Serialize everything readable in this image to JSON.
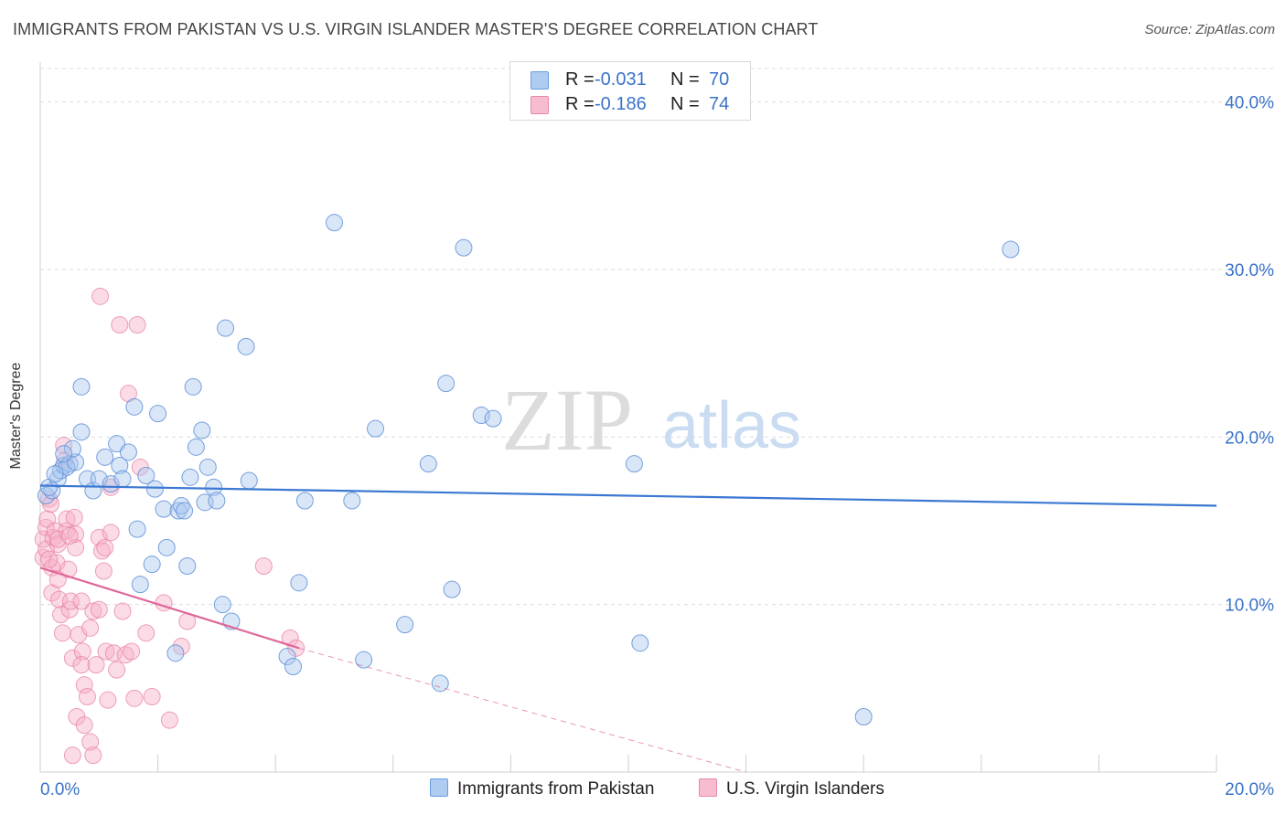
{
  "title": "IMMIGRANTS FROM PAKISTAN VS U.S. VIRGIN ISLANDER MASTER'S DEGREE CORRELATION CHART",
  "source": "Source: ZipAtlas.com",
  "watermark": {
    "zip": "ZIP",
    "atlas": "atlas"
  },
  "legend": {
    "r_label": "R =",
    "n_label": "N =",
    "rows": [
      {
        "name": "Immigrants from Pakistan",
        "r": "-0.031",
        "n": "70",
        "fill": "#aecbf2",
        "stroke": "#6b9de0"
      },
      {
        "name": "U.S. Virgin Islanders",
        "r": "-0.186",
        "n": "74",
        "fill": "#f7bcd0",
        "stroke": "#e887a8"
      }
    ]
  },
  "chart_data": {
    "type": "scatter",
    "title": "IMMIGRANTS FROM PAKISTAN VS U.S. VIRGIN ISLANDER MASTER'S DEGREE CORRELATION CHART",
    "xlabel": "",
    "ylabel": "Master's Degree",
    "xlim": [
      0,
      20
    ],
    "ylim": [
      0,
      42
    ],
    "x_tick_labels": [
      "0.0%",
      "20.0%"
    ],
    "y_ticks": [
      10,
      20,
      30,
      40
    ],
    "y_tick_labels": [
      "10.0%",
      "20.0%",
      "30.0%",
      "40.0%"
    ],
    "grid": true,
    "series": [
      {
        "name": "Immigrants from Pakistan",
        "color": "#3a78d2",
        "points": [
          [
            0.1,
            16.5
          ],
          [
            0.2,
            16.8
          ],
          [
            0.15,
            17.0
          ],
          [
            0.3,
            17.5
          ],
          [
            0.35,
            18.0
          ],
          [
            0.4,
            18.3
          ],
          [
            0.5,
            18.4
          ],
          [
            0.45,
            18.2
          ],
          [
            0.6,
            18.5
          ],
          [
            0.55,
            19.3
          ],
          [
            0.7,
            20.3
          ],
          [
            0.7,
            23.0
          ],
          [
            0.8,
            17.5
          ],
          [
            0.9,
            16.8
          ],
          [
            1.0,
            17.5
          ],
          [
            1.1,
            18.8
          ],
          [
            1.2,
            17.2
          ],
          [
            1.3,
            19.6
          ],
          [
            1.35,
            18.3
          ],
          [
            1.4,
            17.5
          ],
          [
            1.5,
            19.1
          ],
          [
            1.6,
            21.8
          ],
          [
            1.65,
            14.5
          ],
          [
            1.7,
            11.2
          ],
          [
            1.8,
            17.7
          ],
          [
            1.9,
            12.4
          ],
          [
            1.95,
            16.9
          ],
          [
            2.0,
            21.4
          ],
          [
            2.1,
            15.7
          ],
          [
            2.15,
            13.4
          ],
          [
            2.3,
            7.1
          ],
          [
            2.35,
            15.6
          ],
          [
            2.4,
            15.9
          ],
          [
            2.45,
            15.6
          ],
          [
            2.5,
            12.3
          ],
          [
            2.55,
            17.6
          ],
          [
            2.6,
            23.0
          ],
          [
            2.65,
            19.4
          ],
          [
            2.75,
            20.4
          ],
          [
            2.8,
            16.1
          ],
          [
            2.85,
            18.2
          ],
          [
            2.95,
            17.0
          ],
          [
            3.0,
            16.2
          ],
          [
            3.1,
            10.0
          ],
          [
            3.15,
            26.5
          ],
          [
            3.25,
            9.0
          ],
          [
            3.5,
            25.4
          ],
          [
            3.55,
            17.4
          ],
          [
            4.2,
            6.9
          ],
          [
            4.3,
            6.3
          ],
          [
            4.4,
            11.3
          ],
          [
            4.5,
            16.2
          ],
          [
            5.0,
            32.8
          ],
          [
            5.3,
            16.2
          ],
          [
            5.5,
            6.7
          ],
          [
            5.7,
            20.5
          ],
          [
            6.2,
            8.8
          ],
          [
            6.6,
            18.4
          ],
          [
            6.8,
            5.3
          ],
          [
            6.9,
            23.2
          ],
          [
            7.2,
            31.3
          ],
          [
            7.0,
            10.9
          ],
          [
            7.5,
            21.3
          ],
          [
            7.7,
            21.1
          ],
          [
            10.1,
            18.4
          ],
          [
            10.2,
            7.7
          ],
          [
            14.0,
            3.3
          ],
          [
            16.5,
            31.2
          ],
          [
            0.25,
            17.8
          ],
          [
            0.4,
            19.0
          ]
        ],
        "trend": {
          "x": [
            0,
            20
          ],
          "y": [
            17.1,
            15.9
          ]
        }
      },
      {
        "name": "U.S. Virgin Islanders",
        "color": "#e0679a",
        "points": [
          [
            0.05,
            13.9
          ],
          [
            0.05,
            12.8
          ],
          [
            0.1,
            14.6
          ],
          [
            0.1,
            13.3
          ],
          [
            0.12,
            15.1
          ],
          [
            0.15,
            16.3
          ],
          [
            0.18,
            16.0
          ],
          [
            0.2,
            12.2
          ],
          [
            0.2,
            10.7
          ],
          [
            0.22,
            14.0
          ],
          [
            0.25,
            14.4
          ],
          [
            0.28,
            12.5
          ],
          [
            0.3,
            13.6
          ],
          [
            0.3,
            11.5
          ],
          [
            0.32,
            10.3
          ],
          [
            0.35,
            9.4
          ],
          [
            0.38,
            8.3
          ],
          [
            0.4,
            19.5
          ],
          [
            0.42,
            18.6
          ],
          [
            0.45,
            14.4
          ],
          [
            0.45,
            15.1
          ],
          [
            0.48,
            12.1
          ],
          [
            0.5,
            9.7
          ],
          [
            0.52,
            10.2
          ],
          [
            0.55,
            6.8
          ],
          [
            0.55,
            1.0
          ],
          [
            0.58,
            15.2
          ],
          [
            0.6,
            14.2
          ],
          [
            0.62,
            3.3
          ],
          [
            0.65,
            8.2
          ],
          [
            0.7,
            10.2
          ],
          [
            0.72,
            7.2
          ],
          [
            0.75,
            5.2
          ],
          [
            0.75,
            2.8
          ],
          [
            0.7,
            6.4
          ],
          [
            0.8,
            4.5
          ],
          [
            0.85,
            8.6
          ],
          [
            0.85,
            1.8
          ],
          [
            0.9,
            1.0
          ],
          [
            0.9,
            9.6
          ],
          [
            0.95,
            6.4
          ],
          [
            1.0,
            9.7
          ],
          [
            1.0,
            14.0
          ],
          [
            1.02,
            28.4
          ],
          [
            1.05,
            13.2
          ],
          [
            1.08,
            12.0
          ],
          [
            1.1,
            13.4
          ],
          [
            1.12,
            7.2
          ],
          [
            1.15,
            4.3
          ],
          [
            1.2,
            14.3
          ],
          [
            1.2,
            17.0
          ],
          [
            1.25,
            7.1
          ],
          [
            1.3,
            6.1
          ],
          [
            1.35,
            26.7
          ],
          [
            1.4,
            9.6
          ],
          [
            1.45,
            7.0
          ],
          [
            1.5,
            22.6
          ],
          [
            1.55,
            7.2
          ],
          [
            1.6,
            4.4
          ],
          [
            1.65,
            26.7
          ],
          [
            1.7,
            18.2
          ],
          [
            1.8,
            8.3
          ],
          [
            1.9,
            4.5
          ],
          [
            2.1,
            10.1
          ],
          [
            2.2,
            3.1
          ],
          [
            2.4,
            7.5
          ],
          [
            2.5,
            9.0
          ],
          [
            3.8,
            12.3
          ],
          [
            4.25,
            8.0
          ],
          [
            4.35,
            7.4
          ],
          [
            0.6,
            13.4
          ],
          [
            0.3,
            13.9
          ],
          [
            0.15,
            12.7
          ],
          [
            0.5,
            14.1
          ]
        ],
        "trend_solid": {
          "x": [
            0,
            4.4
          ],
          "y": [
            12.2,
            7.4
          ]
        },
        "trend_dashed": {
          "x": [
            4.4,
            12.0
          ],
          "y": [
            7.4,
            0.0
          ]
        }
      }
    ]
  }
}
